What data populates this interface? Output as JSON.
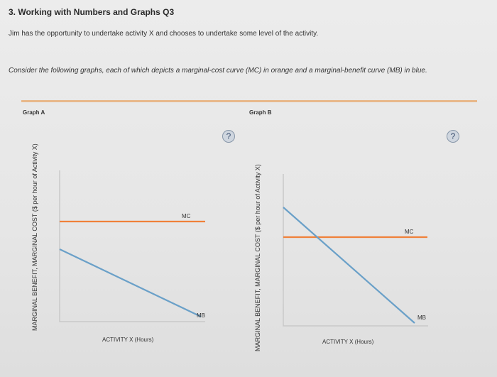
{
  "question": {
    "title": "3. Working with Numbers and Graphs Q3",
    "intro": "Jim has the opportunity to undertake activity X and chooses to undertake some level of the activity.",
    "consider": "Consider the following graphs, each of which depicts a marginal-cost curve (MC) in orange and a marginal-benefit curve (MB) in blue."
  },
  "colors": {
    "mc": "#f0813a",
    "mb": "#6aa0c8",
    "divider": "#e8b88a"
  },
  "help_label": "?",
  "graphs": [
    {
      "title": "Graph A",
      "ylabel": "MARGINAL BENEFIT, MARGINAL COST ($ per hour of Activity X)",
      "xlabel": "ACTIVITY X (Hours)",
      "mc_label": "MC",
      "mb_label": "MB"
    },
    {
      "title": "Graph B",
      "ylabel": "MARGINAL BENEFIT, MARGINAL COST ($ per hour of Activity X)",
      "xlabel": "ACTIVITY X (Hours)",
      "mc_label": "MC",
      "mb_label": "MB"
    }
  ]
}
